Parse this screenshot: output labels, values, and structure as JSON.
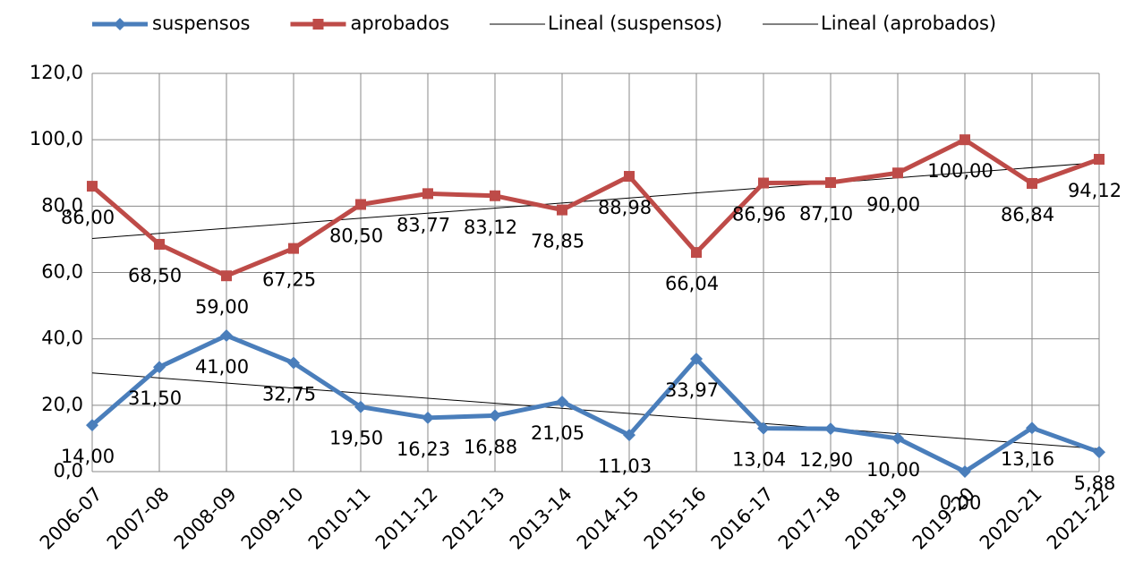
{
  "chart_data": {
    "type": "line",
    "categories": [
      "2006-07",
      "2007-08",
      "2008-09",
      "2009-10",
      "2010-11",
      "2011-12",
      "2012-13",
      "2013-14",
      "2014-15",
      "2015-16",
      "2016-17",
      "2017-18",
      "2018-19",
      "2019-20",
      "2020-21",
      "2021-22"
    ],
    "series": [
      {
        "name": "suspensos",
        "color": "#4a7ebb",
        "marker": "diamond",
        "values": [
          14.0,
          31.5,
          41.0,
          32.75,
          19.5,
          16.23,
          16.88,
          21.05,
          11.03,
          33.97,
          13.04,
          12.9,
          10.0,
          0.0,
          13.16,
          5.88
        ],
        "value_labels": [
          "14,00",
          "31,50",
          "41,00",
          "32,75",
          "19,50",
          "16,23",
          "16,88",
          "21,05",
          "11,03",
          "33,97",
          "13,04",
          "12,90",
          "10,00",
          "0,00",
          "13,16",
          "5,88"
        ],
        "trendline": {
          "name": "Lineal (suspensos)",
          "color": "#000000"
        }
      },
      {
        "name": "aprobados",
        "color": "#be4b48",
        "marker": "square",
        "values": [
          86.0,
          68.5,
          59.0,
          67.25,
          80.5,
          83.77,
          83.12,
          78.85,
          88.98,
          66.04,
          86.96,
          87.1,
          90.0,
          100.0,
          86.84,
          94.12
        ],
        "value_labels": [
          "86,00",
          "68,50",
          "59,00",
          "67,25",
          "80,50",
          "83,77",
          "83,12",
          "78,85",
          "88,98",
          "66,04",
          "86,96",
          "87,10",
          "90,00",
          "100,00",
          "86,84",
          "94,12"
        ],
        "trendline": {
          "name": "Lineal (aprobados)",
          "color": "#000000"
        }
      }
    ],
    "ylim": [
      0,
      120
    ],
    "yticks": [
      {
        "value": 0,
        "label": "0,0"
      },
      {
        "value": 20,
        "label": "20,0"
      },
      {
        "value": 40,
        "label": "40,0"
      },
      {
        "value": 60,
        "label": "60,0"
      },
      {
        "value": 80,
        "label": "80,0"
      },
      {
        "value": 100,
        "label": "100,0"
      },
      {
        "value": 120,
        "label": "120,0"
      }
    ],
    "grid": true,
    "legend": "top"
  }
}
